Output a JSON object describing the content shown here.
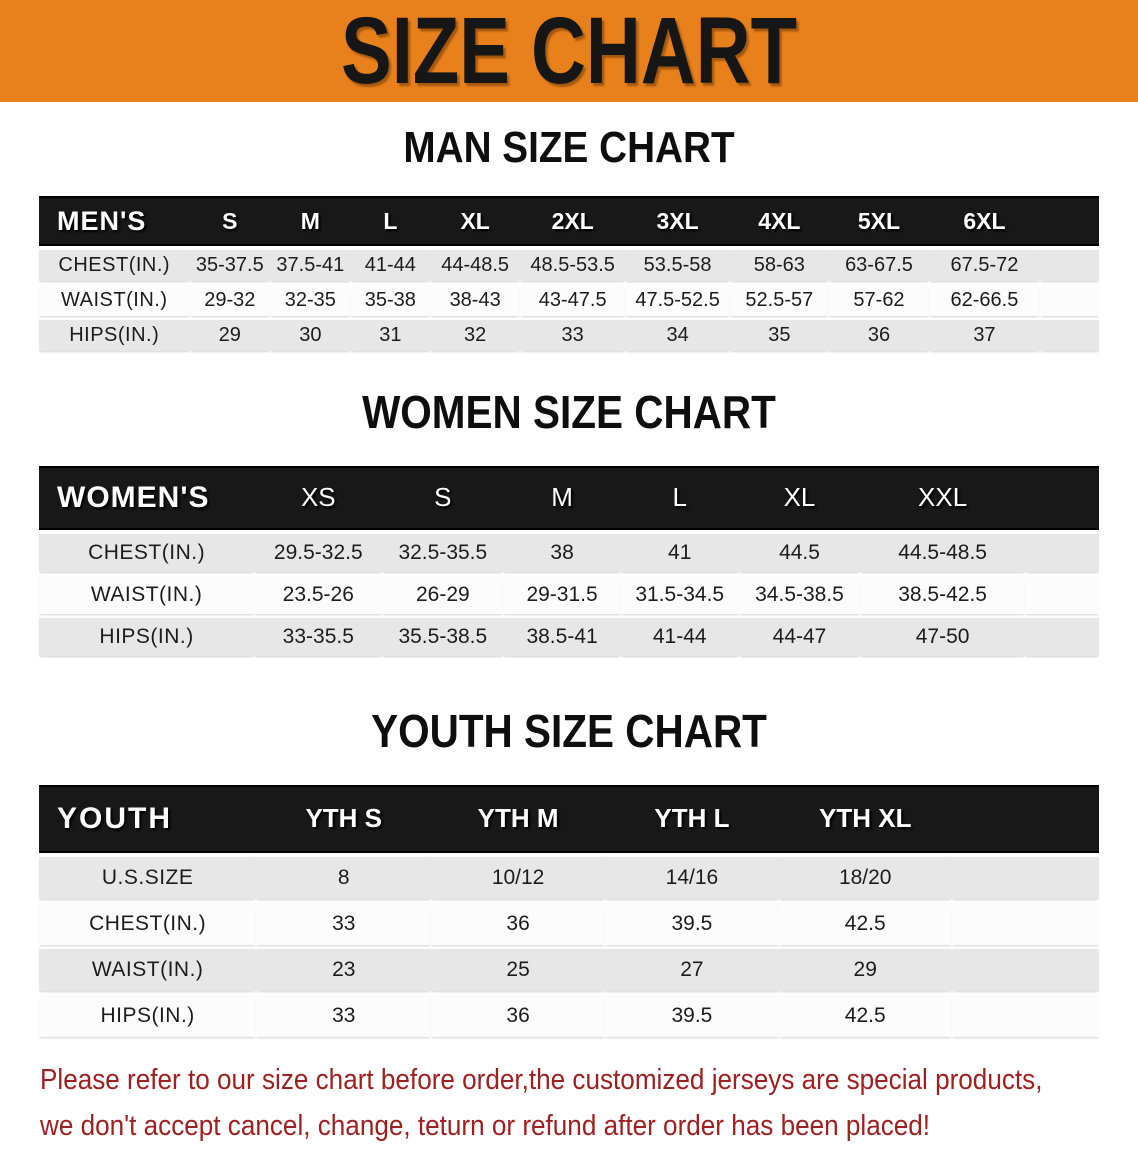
{
  "banner": {
    "title": "SIZE CHART",
    "bg_color": "#e8811c",
    "text_color": "#161616"
  },
  "sections": {
    "men": {
      "heading": "MAN SIZE CHART",
      "table": {
        "header": [
          "MEN'S",
          "S",
          "M",
          "L",
          "XL",
          "2XL",
          "3XL",
          "4XL",
          "5XL",
          "6XL"
        ],
        "rows": [
          {
            "label": "CHEST(IN.)",
            "values": [
              "35-37.5",
              "37.5-41",
              "41-44",
              "44-48.5",
              "48.5-53.5",
              "53.5-58",
              "58-63",
              "63-67.5",
              "67.5-72"
            ]
          },
          {
            "label": "WAIST(IN.)",
            "values": [
              "29-32",
              "32-35",
              "35-38",
              "38-43",
              "43-47.5",
              "47.5-52.5",
              "52.5-57",
              "57-62",
              "62-66.5"
            ]
          },
          {
            "label": "HIPS(IN.)",
            "values": [
              "29",
              "30",
              "31",
              "32",
              "33",
              "34",
              "35",
              "36",
              "37"
            ]
          }
        ]
      }
    },
    "women": {
      "heading": "WOMEN SIZE CHART",
      "table": {
        "header": [
          "WOMEN'S",
          "XS",
          "S",
          "M",
          "L",
          "XL",
          "XXL"
        ],
        "rows": [
          {
            "label": "CHEST(IN.)",
            "values": [
              "29.5-32.5",
              "32.5-35.5",
              "38",
              "41",
              "44.5",
              "44.5-48.5"
            ]
          },
          {
            "label": "WAIST(IN.)",
            "values": [
              "23.5-26",
              "26-29",
              "29-31.5",
              "31.5-34.5",
              "34.5-38.5",
              "38.5-42.5"
            ]
          },
          {
            "label": "HIPS(IN.)",
            "values": [
              "33-35.5",
              "35.5-38.5",
              "38.5-41",
              "41-44",
              "44-47",
              "47-50"
            ]
          }
        ]
      }
    },
    "youth": {
      "heading": "YOUTH SIZE CHART",
      "table": {
        "header": [
          "YOUTH",
          "YTH S",
          "YTH M",
          "YTH L",
          "YTH XL"
        ],
        "rows": [
          {
            "label": "U.S.SIZE",
            "values": [
              "8",
              "10/12",
              "14/16",
              "18/20"
            ]
          },
          {
            "label": "CHEST(IN.)",
            "values": [
              "33",
              "36",
              "39.5",
              "42.5"
            ]
          },
          {
            "label": "WAIST(IN.)",
            "values": [
              "23",
              "25",
              "27",
              "29"
            ]
          },
          {
            "label": "HIPS(IN.)",
            "values": [
              "33",
              "36",
              "39.5",
              "42.5"
            ]
          }
        ]
      }
    }
  },
  "table_style": {
    "header_band_bg": "#181818",
    "row_gray_bg": "#e7e7e7",
    "row_white_bg": "#fcfcfc"
  },
  "disclaimer": {
    "line1": "Please refer to our size chart before order,the customized jerseys are special products,",
    "line2": "we don't accept cancel, change, teturn or refund after order has been placed!",
    "color": "#9e2020"
  }
}
